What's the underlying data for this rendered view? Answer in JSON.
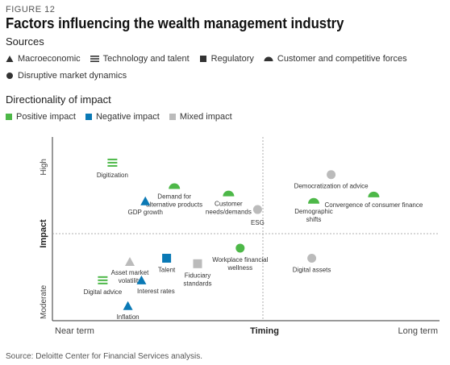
{
  "figure_label": "FIGURE 12",
  "title": "Factors influencing the wealth management industry",
  "sources": {
    "heading": "Sources",
    "items": [
      {
        "icon": "triangle-icon",
        "label": "Macroeconomic"
      },
      {
        "icon": "lines-icon",
        "label": "Technology and talent"
      },
      {
        "icon": "square-icon",
        "label": "Regulatory"
      },
      {
        "icon": "semicircle-icon",
        "label": "Customer and competitive forces"
      },
      {
        "icon": "circle-icon",
        "label": "Disruptive market dynamics"
      }
    ]
  },
  "directionality": {
    "heading": "Directionality of impact",
    "items": [
      {
        "label": "Positive impact",
        "color": "#4db848"
      },
      {
        "label": "Negative impact",
        "color": "#0a79b5"
      },
      {
        "label": "Mixed impact",
        "color": "#bbbbbb"
      }
    ]
  },
  "footer": "Source: Deloitte Center for Financial Services analysis.",
  "chart_data": {
    "type": "scatter",
    "xlabel": "Timing",
    "ylabel": "Impact",
    "x_low_label": "Near term",
    "x_high_label": "Long term",
    "y_low_label": "Moderate",
    "y_high_label": "High",
    "xlim": [
      0,
      10
    ],
    "ylim": [
      0,
      10
    ],
    "points": [
      {
        "label": "Digitization",
        "x": 1.55,
        "y": 8.6,
        "shape": "lines",
        "impact": "positive"
      },
      {
        "label": "Demand for alternative products",
        "x": 3.15,
        "y": 7.3,
        "shape": "semicircle",
        "impact": "positive"
      },
      {
        "label": "GDP growth",
        "x": 2.4,
        "y": 6.5,
        "shape": "triangle",
        "impact": "negative"
      },
      {
        "label": "Customer needs/demands",
        "x": 4.55,
        "y": 6.9,
        "shape": "semicircle",
        "impact": "positive"
      },
      {
        "label": "ESG",
        "x": 5.3,
        "y": 6.05,
        "shape": "circle",
        "impact": "mixed"
      },
      {
        "label": "Democratization of advice",
        "x": 7.2,
        "y": 7.95,
        "shape": "circle",
        "impact": "mixed"
      },
      {
        "label": "Convergence of consumer finance",
        "x": 8.3,
        "y": 6.85,
        "shape": "semicircle",
        "impact": "positive"
      },
      {
        "label": "Demographic shifts",
        "x": 6.75,
        "y": 6.5,
        "shape": "semicircle",
        "impact": "positive"
      },
      {
        "label": "Workplace financial wellness",
        "x": 4.85,
        "y": 3.95,
        "shape": "circle",
        "impact": "positive"
      },
      {
        "label": "Digital assets",
        "x": 6.7,
        "y": 3.4,
        "shape": "circle",
        "impact": "mixed"
      },
      {
        "label": "Asset market volatility",
        "x": 2.0,
        "y": 3.2,
        "shape": "triangle",
        "impact": "mixed"
      },
      {
        "label": "Talent",
        "x": 2.95,
        "y": 3.4,
        "shape": "square",
        "impact": "negative"
      },
      {
        "label": "Fiduciary standards",
        "x": 3.75,
        "y": 3.1,
        "shape": "square",
        "impact": "mixed"
      },
      {
        "label": "Digital advice",
        "x": 1.3,
        "y": 2.2,
        "shape": "lines",
        "impact": "positive"
      },
      {
        "label": "Interest rates",
        "x": 2.3,
        "y": 2.2,
        "shape": "triangle",
        "impact": "negative"
      },
      {
        "label": "Inflation",
        "x": 1.95,
        "y": 0.8,
        "shape": "triangle",
        "impact": "negative"
      }
    ],
    "impact_colors": {
      "positive": "#4db848",
      "negative": "#0a79b5",
      "mixed": "#bbbbbb"
    }
  }
}
